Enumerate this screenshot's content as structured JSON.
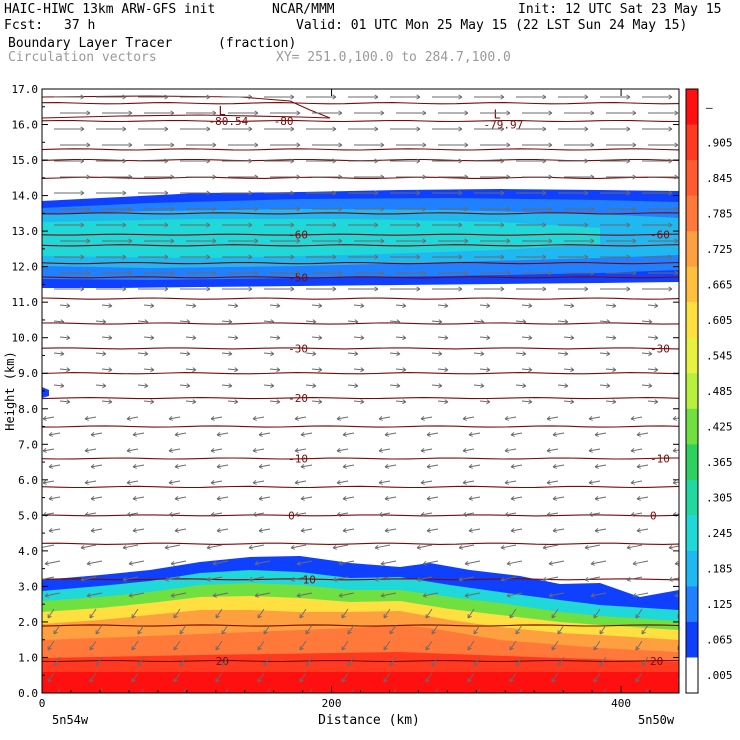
{
  "header": {
    "model": "HAIC-HIWC 13km ARW-GFS init",
    "org": "NCAR/MMM",
    "init": "Init: 12 UTC Sat 23 May 15",
    "fcst_label": "Fcst:",
    "fcst_value": "37 h",
    "valid": "Valid: 01 UTC Mon 25 May 15 (22 LST Sun 24 May 15)",
    "field": "Boundary Layer Tracer",
    "field_units": "(fraction)",
    "vectors": "Circulation vectors",
    "xy": "XY= 251.0,100.0 to 284.7,100.0"
  },
  "chart_data": {
    "type": "heatmap",
    "title": "Boundary Layer Tracer",
    "ylabel": "Height (km)",
    "xlabel": "Distance (km)",
    "ylim": [
      0,
      17
    ],
    "xlim": [
      0,
      440
    ],
    "y_ticks": [
      "0.0",
      "1.0",
      "2.0",
      "3.0",
      "4.0",
      "5.0",
      "6.0",
      "7.0",
      "8.0",
      "9.0",
      "10.0",
      "11.0",
      "12.0",
      "13.0",
      "14.0",
      "15.0",
      "16.0",
      "17.0"
    ],
    "x_ticks": [
      {
        "value": 0,
        "label": "0"
      },
      {
        "value": 200,
        "label": "200"
      },
      {
        "value": 400,
        "label": "400"
      }
    ],
    "x_end_labels": {
      "left": "5n54w",
      "right": "5n50w"
    },
    "colorbar": {
      "labels": [
        "–",
        ".905",
        ".845",
        ".785",
        ".725",
        ".665",
        ".605",
        ".545",
        ".485",
        ".425",
        ".365",
        ".305",
        ".245",
        ".185",
        ".125",
        ".065",
        ".005"
      ],
      "colors": [
        "#ff1010",
        "#ff3a20",
        "#ff5a30",
        "#ff7a3a",
        "#ffa040",
        "#ffc040",
        "#ffe040",
        "#e8f040",
        "#b8f040",
        "#70e040",
        "#30d060",
        "#20d8a0",
        "#20d8d8",
        "#20b8f0",
        "#2080ff",
        "#1040ff",
        "#ffffff"
      ]
    },
    "temperature_contours": [
      {
        "label": "0",
        "height_km": 5.0,
        "label_x_km": [
          170,
          420
        ]
      },
      {
        "label": "-10",
        "height_km": 6.6,
        "label_x_km": [
          170,
          420
        ]
      },
      {
        "label": "-20",
        "height_km": 8.3,
        "label_x_km": [
          170
        ]
      },
      {
        "label": "-30",
        "height_km": 9.7,
        "label_x_km": [
          170,
          420
        ]
      },
      {
        "label": "-50",
        "height_km": 11.7,
        "label_x_km": [
          170
        ]
      },
      {
        "label": "-60",
        "height_km": 12.9,
        "label_x_km": [
          170,
          420
        ]
      },
      {
        "label": "-80",
        "height_km": 16.1,
        "label_x_km": [
          160
        ]
      },
      {
        "label": "10",
        "height_km": 3.2,
        "label_x_km": [
          180
        ]
      },
      {
        "label": "20",
        "height_km": 0.9,
        "label_x_km": [
          120,
          420
        ]
      }
    ],
    "lows": [
      {
        "label": "L",
        "value": "-80.54",
        "x_km": 115,
        "height_km": 16.1
      },
      {
        "label": "L",
        "value": "-79.97",
        "x_km": 305,
        "height_km": 16.0
      }
    ]
  }
}
